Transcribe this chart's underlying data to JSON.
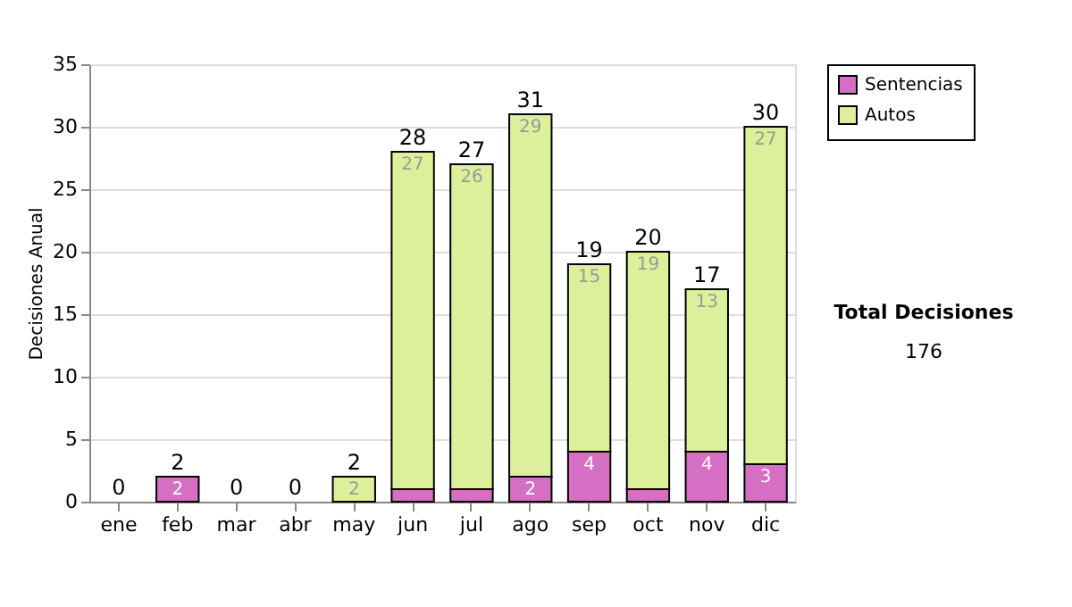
{
  "chart_data": {
    "type": "bar",
    "stacked": true,
    "ylabel": "Decisiones Anual",
    "categories": [
      "ene",
      "feb",
      "mar",
      "abr",
      "may",
      "jun",
      "jul",
      "ago",
      "sep",
      "oct",
      "nov",
      "dic"
    ],
    "series": [
      {
        "name": "Sentencias",
        "color": "#d46fc4",
        "values": [
          0,
          2,
          0,
          0,
          0,
          1,
          1,
          2,
          4,
          1,
          4,
          3
        ],
        "value_labels": [
          null,
          "2",
          null,
          null,
          null,
          null,
          null,
          "2",
          "4",
          null,
          "4",
          "3"
        ]
      },
      {
        "name": "Autos",
        "color": "#dcf09c",
        "values": [
          0,
          0,
          0,
          0,
          2,
          27,
          26,
          29,
          15,
          19,
          13,
          27
        ],
        "value_labels": [
          null,
          null,
          null,
          null,
          "2",
          "27",
          "26",
          "29",
          "15",
          "19",
          "13",
          "27"
        ]
      }
    ],
    "totals": [
      "0",
      "2",
      "0",
      "0",
      "2",
      "28",
      "27",
      "31",
      "19",
      "20",
      "17",
      "30"
    ],
    "ylim": [
      0,
      35
    ],
    "yticks": [
      0,
      5,
      10,
      15,
      20,
      25,
      30,
      35
    ],
    "grid": "y",
    "legend": "right",
    "annotations": [
      "Total Decisiones",
      "176"
    ]
  }
}
